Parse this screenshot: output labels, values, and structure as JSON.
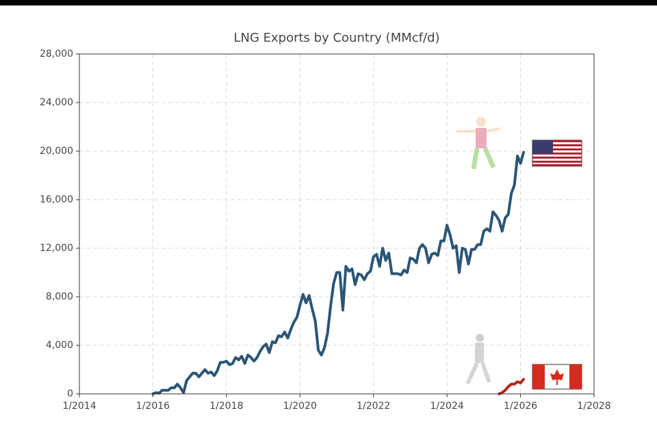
{
  "chart_data": {
    "type": "line",
    "title": "LNG Exports by Country (MMcf/d)",
    "x": [
      "2016-01",
      "2016-02",
      "2016-03",
      "2016-04",
      "2016-05",
      "2016-06",
      "2016-07",
      "2016-08",
      "2016-09",
      "2016-10",
      "2016-11",
      "2016-12",
      "2017-01",
      "2017-02",
      "2017-03",
      "2017-04",
      "2017-05",
      "2017-06",
      "2017-07",
      "2017-08",
      "2017-09",
      "2017-10",
      "2017-11",
      "2017-12",
      "2018-01",
      "2018-02",
      "2018-03",
      "2018-04",
      "2018-05",
      "2018-06",
      "2018-07",
      "2018-08",
      "2018-09",
      "2018-10",
      "2018-11",
      "2018-12",
      "2019-01",
      "2019-02",
      "2019-03",
      "2019-04",
      "2019-05",
      "2019-06",
      "2019-07",
      "2019-08",
      "2019-09",
      "2019-10",
      "2019-11",
      "2019-12",
      "2020-01",
      "2020-02",
      "2020-03",
      "2020-04",
      "2020-05",
      "2020-06",
      "2020-07",
      "2020-08",
      "2020-09",
      "2020-10",
      "2020-11",
      "2020-12",
      "2021-01",
      "2021-02",
      "2021-03",
      "2021-04",
      "2021-05",
      "2021-06",
      "2021-07",
      "2021-08",
      "2021-09",
      "2021-10",
      "2021-11",
      "2021-12",
      "2022-01",
      "2022-02",
      "2022-03",
      "2022-04",
      "2022-05",
      "2022-06",
      "2022-07",
      "2022-08",
      "2022-09",
      "2022-10",
      "2022-11",
      "2022-12",
      "2023-01",
      "2023-02",
      "2023-03",
      "2023-04",
      "2023-05",
      "2023-06",
      "2023-07",
      "2023-08",
      "2023-09",
      "2023-10",
      "2023-11",
      "2023-12",
      "2024-01",
      "2024-02",
      "2024-03",
      "2024-04",
      "2024-05",
      "2024-06",
      "2024-07",
      "2024-08",
      "2024-09",
      "2024-10",
      "2024-11",
      "2024-12",
      "2025-01",
      "2025-02",
      "2025-03",
      "2025-04",
      "2025-05",
      "2025-06",
      "2025-07",
      "2025-08",
      "2025-09",
      "2025-10",
      "2025-11",
      "2025-12",
      "2026-01",
      "2026-02"
    ],
    "series": [
      {
        "color": "#2b5676",
        "values": [
          0,
          100,
          50,
          300,
          300,
          300,
          500,
          500,
          800,
          500,
          100,
          1100,
          1400,
          1700,
          1700,
          1400,
          1700,
          2000,
          1700,
          1800,
          1500,
          1900,
          2600,
          2600,
          2700,
          2400,
          2500,
          3000,
          2800,
          3100,
          2500,
          3200,
          3000,
          2700,
          3000,
          3500,
          3900,
          4100,
          3400,
          4300,
          4200,
          4800,
          4700,
          5100,
          4600,
          5300,
          5900,
          6300,
          7300,
          8200,
          7500,
          8100,
          7000,
          6000,
          3600,
          3200,
          3800,
          5000,
          7200,
          9100,
          10000,
          10000,
          6900,
          10500,
          10100,
          10300,
          9000,
          9900,
          9800,
          9400,
          9900,
          10100,
          11300,
          11500,
          10500,
          12000,
          11000,
          11600,
          9900,
          9900,
          9900,
          9800,
          10200,
          10000,
          11200,
          11100,
          10800,
          12000,
          12300,
          12000,
          10800,
          11500,
          11600,
          11400,
          12600,
          12600,
          13900,
          13100,
          12000,
          12200,
          10000,
          12000,
          11900,
          10700,
          11900,
          11900,
          12300,
          12300,
          13400,
          13600,
          13400,
          15000,
          14700,
          14300,
          13400,
          14500,
          14800,
          16500,
          17200,
          19600,
          19000,
          19900
        ]
      },
      {
        "color": "#b3261e",
        "values": [
          null,
          null,
          null,
          null,
          null,
          null,
          null,
          null,
          null,
          null,
          null,
          null,
          null,
          null,
          null,
          null,
          null,
          null,
          null,
          null,
          null,
          null,
          null,
          null,
          null,
          null,
          null,
          null,
          null,
          null,
          null,
          null,
          null,
          null,
          null,
          null,
          null,
          null,
          null,
          null,
          null,
          null,
          null,
          null,
          null,
          null,
          null,
          null,
          null,
          null,
          null,
          null,
          null,
          null,
          null,
          null,
          null,
          null,
          null,
          null,
          null,
          null,
          null,
          null,
          null,
          null,
          null,
          null,
          null,
          null,
          null,
          null,
          null,
          null,
          null,
          null,
          null,
          null,
          null,
          null,
          null,
          null,
          null,
          null,
          null,
          null,
          null,
          null,
          null,
          null,
          null,
          null,
          null,
          null,
          null,
          null,
          null,
          null,
          null,
          null,
          null,
          null,
          null,
          null,
          null,
          null,
          null,
          null,
          null,
          null,
          null,
          null,
          null,
          0,
          100,
          300,
          600,
          800,
          800,
          1000,
          900,
          1200
        ]
      }
    ],
    "xlim": [
      "2014-01",
      "2028-01"
    ],
    "xticks": [
      {
        "value": "2014-01",
        "label": "1/2014"
      },
      {
        "value": "2016-01",
        "label": "1/2016"
      },
      {
        "value": "2018-01",
        "label": "1/2018"
      },
      {
        "value": "2020-01",
        "label": "1/2020"
      },
      {
        "value": "2022-01",
        "label": "1/2022"
      },
      {
        "value": "2024-01",
        "label": "1/2024"
      },
      {
        "value": "2026-01",
        "label": "1/2026"
      },
      {
        "value": "2028-01",
        "label": "1/2028"
      }
    ],
    "ylim": [
      0,
      28000
    ],
    "yticks": [
      0,
      {
        "value": 4000,
        "label": "4,000"
      },
      {
        "value": 8000,
        "label": "8,000"
      },
      {
        "value": 12000,
        "label": "12,000"
      },
      {
        "value": 16000,
        "label": "16,000"
      },
      {
        "value": 20000,
        "label": "20,000"
      },
      {
        "value": 24000,
        "label": "24,000"
      },
      {
        "value": 28000,
        "label": "28,000"
      }
    ],
    "grid": true
  }
}
